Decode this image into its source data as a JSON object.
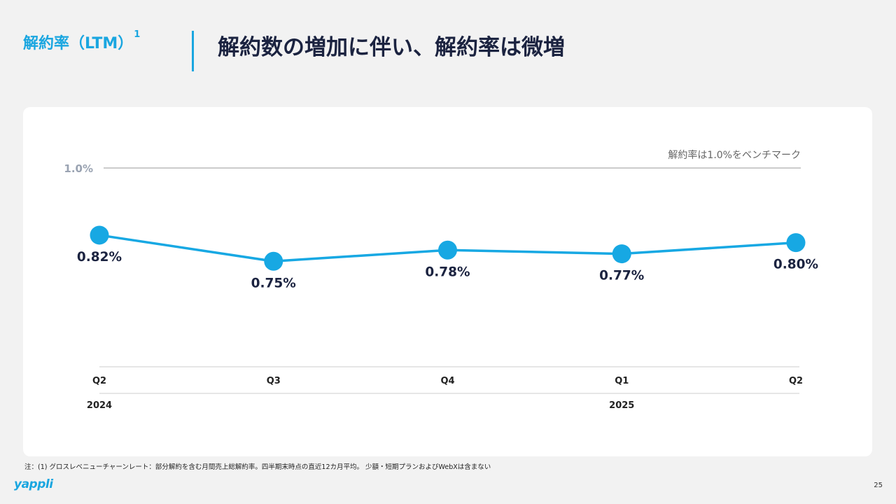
{
  "header": {
    "section_label": "解約率（LTM）",
    "section_sup": "1",
    "headline": "解約数の増加に伴い、解約率は微増"
  },
  "chart_data": {
    "type": "line",
    "categories": [
      "Q2",
      "Q3",
      "Q4",
      "Q1",
      "Q2"
    ],
    "years": [
      "2024",
      "",
      "",
      "2025",
      ""
    ],
    "series": [
      {
        "values": [
          0.82,
          0.75,
          0.78,
          0.77,
          0.8
        ]
      }
    ],
    "data_labels": [
      "0.82%",
      "0.75%",
      "0.78%",
      "0.77%",
      "0.80%"
    ],
    "label_placement": [
      "below",
      "below",
      "above",
      "below",
      "above"
    ],
    "benchmark": {
      "value": 1.0,
      "tick_label": "1.0%",
      "text": "解約率は1.0%をベンチマーク"
    },
    "ylim": [
      0.5,
      1.0
    ],
    "grid": false,
    "colors": {
      "line": "#17a8e3",
      "benchmark": "#bbbbbb",
      "axis": "#cccccc",
      "text": "#1b2340",
      "muted": "#9aa3b2"
    }
  },
  "footnote": "注：(1) グロスレベニューチャーンレート：部分解約を含む月間売上総解約率。四半期末時点の直近12カ月平均。 少額・短期プランおよびWebXは含まない",
  "logo": "yappli",
  "page_number": "25"
}
